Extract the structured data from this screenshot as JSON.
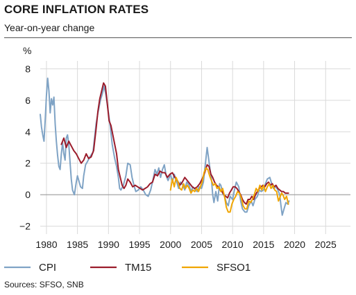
{
  "title": "CORE INFLATION RATES",
  "subtitle": "Year-on-year change",
  "source": "Sources: SFSO, SNB",
  "chart_data": {
    "type": "line",
    "ylabel": "%",
    "xlim": [
      1979,
      2029
    ],
    "ylim": [
      -2.5,
      8.5
    ],
    "yticks": [
      -2,
      0,
      2,
      4,
      6,
      8
    ],
    "xticks": [
      1980,
      1985,
      1990,
      1995,
      2000,
      2005,
      2010,
      2015,
      2020,
      2025
    ],
    "grid": true,
    "legend_position": "bottom",
    "series": [
      {
        "name": "CPI",
        "color": "#7fa3c5",
        "points": [
          [
            1979.0,
            5.1
          ],
          [
            1979.2,
            4.3
          ],
          [
            1979.4,
            3.8
          ],
          [
            1979.6,
            3.4
          ],
          [
            1979.8,
            4.8
          ],
          [
            1980.0,
            6.3
          ],
          [
            1980.2,
            7.4
          ],
          [
            1980.4,
            6.6
          ],
          [
            1980.6,
            5.2
          ],
          [
            1980.8,
            6.1
          ],
          [
            1981.0,
            5.7
          ],
          [
            1981.2,
            6.2
          ],
          [
            1981.4,
            4.5
          ],
          [
            1981.6,
            3.4
          ],
          [
            1981.8,
            2.5
          ],
          [
            1982.0,
            1.8
          ],
          [
            1982.2,
            1.6
          ],
          [
            1982.4,
            2.6
          ],
          [
            1982.6,
            3.3
          ],
          [
            1982.8,
            2.6
          ],
          [
            1983.0,
            2.2
          ],
          [
            1983.2,
            3.6
          ],
          [
            1983.4,
            3.8
          ],
          [
            1983.6,
            3.2
          ],
          [
            1983.8,
            2.1
          ],
          [
            1984.0,
            1.0
          ],
          [
            1984.2,
            0.3
          ],
          [
            1984.5,
            0.0
          ],
          [
            1984.8,
            0.8
          ],
          [
            1985.0,
            1.2
          ],
          [
            1985.5,
            0.5
          ],
          [
            1985.8,
            0.4
          ],
          [
            1986.0,
            1.2
          ],
          [
            1986.3,
            1.9
          ],
          [
            1986.6,
            2.1
          ],
          [
            1987.0,
            2.4
          ],
          [
            1987.5,
            2.7
          ],
          [
            1988.0,
            4.5
          ],
          [
            1988.3,
            5.2
          ],
          [
            1988.7,
            6.0
          ],
          [
            1989.0,
            6.4
          ],
          [
            1989.3,
            6.9
          ],
          [
            1989.6,
            6.3
          ],
          [
            1990.0,
            5.2
          ],
          [
            1990.3,
            4.3
          ],
          [
            1990.6,
            3.2
          ],
          [
            1991.0,
            2.3
          ],
          [
            1991.3,
            1.8
          ],
          [
            1991.6,
            1.1
          ],
          [
            1991.8,
            0.4
          ],
          [
            1992.0,
            0.3
          ],
          [
            1992.4,
            0.6
          ],
          [
            1992.8,
            1.2
          ],
          [
            1993.1,
            2.0
          ],
          [
            1993.5,
            1.9
          ],
          [
            1993.8,
            1.1
          ],
          [
            1994.1,
            0.6
          ],
          [
            1994.4,
            0.2
          ],
          [
            1994.8,
            0.3
          ],
          [
            1995.2,
            0.5
          ],
          [
            1995.6,
            0.3
          ],
          [
            1996.0,
            0.0
          ],
          [
            1996.4,
            -0.1
          ],
          [
            1996.8,
            0.3
          ],
          [
            1997.2,
            1.0
          ],
          [
            1997.5,
            1.6
          ],
          [
            1997.8,
            1.3
          ],
          [
            1998.1,
            1.7
          ],
          [
            1998.4,
            1.1
          ],
          [
            1998.7,
            1.6
          ],
          [
            1999.0,
            1.9
          ],
          [
            1999.3,
            1.2
          ],
          [
            1999.6,
            0.9
          ],
          [
            2000.0,
            1.3
          ],
          [
            2000.3,
            0.8
          ],
          [
            2000.6,
            1.3
          ],
          [
            2001.0,
            0.8
          ],
          [
            2001.3,
            0.4
          ],
          [
            2001.6,
            0.8
          ],
          [
            2002.0,
            0.6
          ],
          [
            2002.3,
            0.3
          ],
          [
            2002.6,
            0.8
          ],
          [
            2003.0,
            0.6
          ],
          [
            2003.3,
            0.2
          ],
          [
            2003.6,
            0.5
          ],
          [
            2004.0,
            0.3
          ],
          [
            2004.3,
            0.2
          ],
          [
            2004.6,
            0.5
          ],
          [
            2005.0,
            0.4
          ],
          [
            2005.3,
            0.8
          ],
          [
            2005.6,
            1.9
          ],
          [
            2005.9,
            3.0
          ],
          [
            2006.1,
            2.4
          ],
          [
            2006.3,
            1.8
          ],
          [
            2006.6,
            1.0
          ],
          [
            2006.8,
            0.0
          ],
          [
            2007.0,
            -0.5
          ],
          [
            2007.3,
            0.2
          ],
          [
            2007.6,
            -0.4
          ],
          [
            2007.9,
            0.7
          ],
          [
            2008.1,
            0.6
          ],
          [
            2008.4,
            0.1
          ],
          [
            2008.7,
            -0.1
          ],
          [
            2009.0,
            -0.5
          ],
          [
            2009.3,
            -0.7
          ],
          [
            2009.6,
            -0.1
          ],
          [
            2010.0,
            -0.3
          ],
          [
            2010.3,
            0.3
          ],
          [
            2010.6,
            0.8
          ],
          [
            2011.0,
            0.5
          ],
          [
            2011.3,
            -0.4
          ],
          [
            2011.6,
            -0.9
          ],
          [
            2012.0,
            -1.1
          ],
          [
            2012.3,
            -1.1
          ],
          [
            2012.6,
            -0.7
          ],
          [
            2013.0,
            -0.4
          ],
          [
            2013.3,
            -0.7
          ],
          [
            2013.6,
            -0.3
          ],
          [
            2014.0,
            -0.1
          ],
          [
            2014.3,
            0.3
          ],
          [
            2014.6,
            0.2
          ],
          [
            2015.0,
            0.3
          ],
          [
            2015.3,
            0.7
          ],
          [
            2015.6,
            1.0
          ],
          [
            2016.0,
            1.1
          ],
          [
            2016.3,
            0.7
          ],
          [
            2016.6,
            0.4
          ],
          [
            2017.0,
            0.5
          ],
          [
            2017.3,
            0.3
          ],
          [
            2017.6,
            0.0
          ],
          [
            2017.8,
            -0.7
          ],
          [
            2018.0,
            -1.3
          ],
          [
            2018.3,
            -0.9
          ],
          [
            2018.6,
            -0.5
          ],
          [
            2018.9,
            -0.6
          ],
          [
            2019.1,
            -0.4
          ]
        ]
      },
      {
        "name": "TM15",
        "color": "#9b1c2b",
        "points": [
          [
            1982.4,
            3.2
          ],
          [
            1982.8,
            3.6
          ],
          [
            1983.2,
            3.0
          ],
          [
            1983.6,
            3.4
          ],
          [
            1984.0,
            3.1
          ],
          [
            1984.4,
            2.8
          ],
          [
            1984.8,
            2.6
          ],
          [
            1985.2,
            2.3
          ],
          [
            1985.6,
            2.0
          ],
          [
            1986.0,
            2.2
          ],
          [
            1986.4,
            2.6
          ],
          [
            1986.8,
            2.3
          ],
          [
            1987.2,
            2.4
          ],
          [
            1987.6,
            2.8
          ],
          [
            1988.0,
            4.2
          ],
          [
            1988.3,
            5.3
          ],
          [
            1988.6,
            6.1
          ],
          [
            1988.9,
            6.6
          ],
          [
            1989.2,
            7.1
          ],
          [
            1989.5,
            6.9
          ],
          [
            1989.8,
            5.8
          ],
          [
            1990.1,
            4.7
          ],
          [
            1990.4,
            4.4
          ],
          [
            1990.7,
            3.8
          ],
          [
            1991.0,
            3.2
          ],
          [
            1991.3,
            2.6
          ],
          [
            1991.6,
            1.6
          ],
          [
            1991.9,
            1.1
          ],
          [
            1992.2,
            0.6
          ],
          [
            1992.5,
            0.4
          ],
          [
            1992.8,
            0.6
          ],
          [
            1993.1,
            1.0
          ],
          [
            1993.5,
            0.8
          ],
          [
            1993.9,
            0.5
          ],
          [
            1994.3,
            0.6
          ],
          [
            1994.7,
            0.5
          ],
          [
            1995.1,
            0.4
          ],
          [
            1995.5,
            0.3
          ],
          [
            1995.9,
            0.4
          ],
          [
            1996.3,
            0.5
          ],
          [
            1996.7,
            0.7
          ],
          [
            1997.1,
            0.8
          ],
          [
            1997.5,
            1.3
          ],
          [
            1997.9,
            1.2
          ],
          [
            1998.3,
            1.5
          ],
          [
            1998.7,
            1.4
          ],
          [
            1999.1,
            1.4
          ],
          [
            1999.5,
            1.1
          ],
          [
            1999.9,
            1.3
          ],
          [
            2000.3,
            1.4
          ],
          [
            2000.7,
            1.1
          ],
          [
            2001.1,
            0.9
          ],
          [
            2001.5,
            0.6
          ],
          [
            2001.9,
            0.8
          ],
          [
            2002.3,
            1.1
          ],
          [
            2002.7,
            0.9
          ],
          [
            2003.1,
            0.7
          ],
          [
            2003.5,
            0.5
          ],
          [
            2003.9,
            0.4
          ],
          [
            2004.3,
            0.5
          ],
          [
            2004.7,
            0.7
          ],
          [
            2005.1,
            1.0
          ],
          [
            2005.5,
            1.4
          ],
          [
            2005.9,
            1.9
          ],
          [
            2006.2,
            1.8
          ],
          [
            2006.5,
            1.3
          ],
          [
            2006.8,
            1.1
          ],
          [
            2007.1,
            0.8
          ],
          [
            2007.4,
            0.6
          ],
          [
            2007.7,
            0.5
          ],
          [
            2008.0,
            0.3
          ],
          [
            2008.3,
            0.2
          ],
          [
            2008.6,
            0.0
          ],
          [
            2008.9,
            -0.1
          ],
          [
            2009.2,
            -0.2
          ],
          [
            2009.5,
            0.1
          ],
          [
            2009.8,
            0.3
          ],
          [
            2010.1,
            0.5
          ],
          [
            2010.4,
            0.5
          ],
          [
            2010.7,
            0.4
          ],
          [
            2011.0,
            0.2
          ],
          [
            2011.3,
            0.0
          ],
          [
            2011.6,
            -0.3
          ],
          [
            2011.9,
            -0.5
          ],
          [
            2012.2,
            -0.6
          ],
          [
            2012.5,
            -0.3
          ],
          [
            2012.8,
            -0.3
          ],
          [
            2013.1,
            -0.1
          ],
          [
            2013.4,
            -0.3
          ],
          [
            2013.7,
            0.0
          ],
          [
            2014.0,
            0.2
          ],
          [
            2014.3,
            0.4
          ],
          [
            2014.6,
            0.5
          ],
          [
            2014.9,
            0.6
          ],
          [
            2015.2,
            0.5
          ],
          [
            2015.5,
            0.7
          ],
          [
            2015.8,
            0.8
          ],
          [
            2016.1,
            0.6
          ],
          [
            2016.4,
            0.7
          ],
          [
            2016.7,
            0.5
          ],
          [
            2017.0,
            0.6
          ],
          [
            2017.3,
            0.4
          ],
          [
            2017.6,
            0.3
          ],
          [
            2017.9,
            0.2
          ],
          [
            2018.2,
            0.2
          ],
          [
            2018.5,
            0.1
          ],
          [
            2018.8,
            0.1
          ],
          [
            2019.0,
            0.1
          ]
        ]
      },
      {
        "name": "SFSO1",
        "color": "#f0a500",
        "points": [
          [
            2000.0,
            0.3
          ],
          [
            2000.3,
            1.0
          ],
          [
            2000.6,
            0.5
          ],
          [
            2000.9,
            1.1
          ],
          [
            2001.2,
            0.8
          ],
          [
            2001.5,
            0.4
          ],
          [
            2001.8,
            0.3
          ],
          [
            2002.1,
            0.7
          ],
          [
            2002.4,
            0.4
          ],
          [
            2002.7,
            0.6
          ],
          [
            2003.0,
            0.4
          ],
          [
            2003.3,
            0.1
          ],
          [
            2003.6,
            0.3
          ],
          [
            2003.9,
            0.2
          ],
          [
            2004.2,
            0.4
          ],
          [
            2004.5,
            0.2
          ],
          [
            2004.8,
            0.5
          ],
          [
            2005.1,
            0.8
          ],
          [
            2005.4,
            1.4
          ],
          [
            2005.7,
            1.7
          ],
          [
            2006.0,
            1.6
          ],
          [
            2006.3,
            1.2
          ],
          [
            2006.6,
            0.9
          ],
          [
            2006.9,
            0.6
          ],
          [
            2007.2,
            0.7
          ],
          [
            2007.5,
            0.4
          ],
          [
            2007.8,
            0.5
          ],
          [
            2008.1,
            0.2
          ],
          [
            2008.4,
            0.4
          ],
          [
            2008.7,
            -0.1
          ],
          [
            2009.0,
            -0.8
          ],
          [
            2009.3,
            -1.1
          ],
          [
            2009.6,
            -1.1
          ],
          [
            2009.9,
            -0.6
          ],
          [
            2010.2,
            -0.3
          ],
          [
            2010.5,
            -0.1
          ],
          [
            2010.8,
            0.2
          ],
          [
            2011.1,
            0.1
          ],
          [
            2011.4,
            -0.2
          ],
          [
            2011.7,
            -0.7
          ],
          [
            2012.0,
            -0.9
          ],
          [
            2012.3,
            -0.9
          ],
          [
            2012.6,
            -0.4
          ],
          [
            2012.9,
            -0.5
          ],
          [
            2013.2,
            -0.3
          ],
          [
            2013.5,
            0.0
          ],
          [
            2013.8,
            0.4
          ],
          [
            2014.1,
            0.2
          ],
          [
            2014.4,
            0.6
          ],
          [
            2014.7,
            0.3
          ],
          [
            2015.0,
            0.6
          ],
          [
            2015.3,
            0.2
          ],
          [
            2015.6,
            0.5
          ],
          [
            2015.9,
            0.7
          ],
          [
            2016.2,
            0.4
          ],
          [
            2016.5,
            0.6
          ],
          [
            2016.8,
            0.3
          ],
          [
            2017.1,
            0.2
          ],
          [
            2017.4,
            -0.4
          ],
          [
            2017.6,
            -0.2
          ],
          [
            2017.9,
            0.1
          ],
          [
            2018.1,
            0.0
          ],
          [
            2018.4,
            -0.3
          ],
          [
            2018.7,
            -0.1
          ],
          [
            2019.0,
            -0.6
          ]
        ]
      }
    ]
  }
}
